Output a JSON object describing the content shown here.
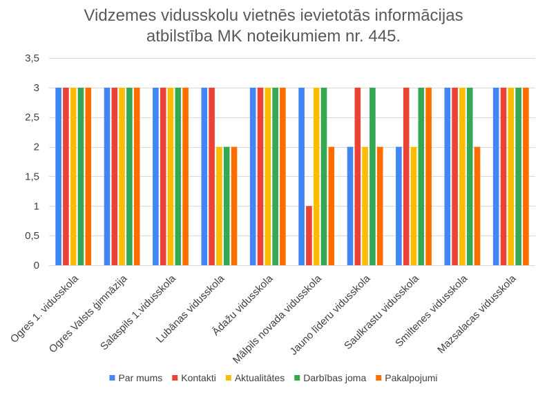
{
  "chart_data": {
    "type": "bar",
    "title_lines": [
      "Vidzemes vidusskolu vietnēs ievietotās informācijas",
      "atbilstība MK noteikumiem nr. 445."
    ],
    "xlabel": "",
    "ylabel": "",
    "ylim": [
      0,
      3.5
    ],
    "ytick_values": [
      0,
      0.5,
      1,
      1.5,
      2,
      2.5,
      3,
      3.5
    ],
    "ytick_labels": [
      "0",
      "0,5",
      "1",
      "1,5",
      "2",
      "2,5",
      "3",
      "3,5"
    ],
    "grid": true,
    "legend_position": "bottom",
    "categories": [
      "Ogres 1. vidusskola",
      "Ogres Valsts ģimnāzija",
      "Salaspils 1.vidusskola",
      "Lubānas vidusskola",
      "Ādažu vidusskola",
      "Mālpils novada vidusskola",
      "Jauno līderu vidusskola",
      "Saulkrastu vidusskola",
      "Smiltenes vidusskola",
      "Mazsalacas vidusskola"
    ],
    "series": [
      {
        "name": "Par mums",
        "color": "#4285F4",
        "values": [
          3,
          3,
          3,
          3,
          3,
          3,
          2,
          2,
          3,
          3
        ]
      },
      {
        "name": "Kontakti",
        "color": "#EA4335",
        "values": [
          3,
          3,
          3,
          3,
          3,
          1,
          3,
          3,
          3,
          3
        ]
      },
      {
        "name": "Aktualitātes",
        "color": "#FBBC04",
        "values": [
          3,
          3,
          3,
          2,
          3,
          3,
          2,
          2,
          3,
          3
        ]
      },
      {
        "name": "Darbības joma",
        "color": "#34A853",
        "values": [
          3,
          3,
          3,
          2,
          3,
          3,
          3,
          3,
          3,
          3
        ]
      },
      {
        "name": "Pakalpojumi",
        "color": "#FF6D01",
        "values": [
          3,
          3,
          3,
          2,
          3,
          2,
          2,
          3,
          2,
          3
        ]
      }
    ]
  }
}
